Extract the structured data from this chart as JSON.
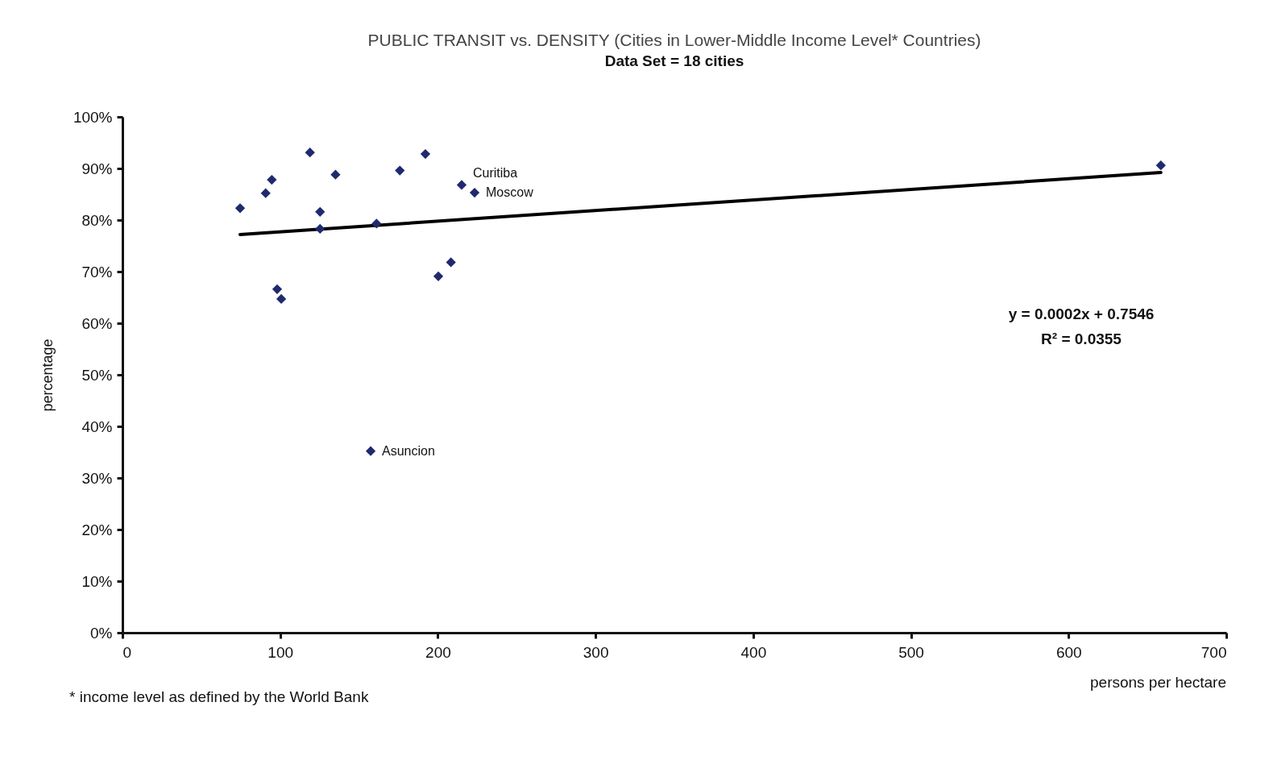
{
  "chart_data": {
    "type": "scatter",
    "title": "PUBLIC TRANSIT vs. DENSITY (Cities in Lower-Middle Income Level* Countries)",
    "subtitle": "Data Set = 18 cities",
    "xlabel": "persons per hectare",
    "ylabel": "percentage",
    "series": [
      {
        "color": "#1f2a6e",
        "marker": "diamond",
        "x": [
          74.6,
          90.8,
          94.7,
          118.9,
          135.1,
          125.3,
          125.3,
          161.1,
          175.9,
          192.1,
          215.1,
          223.3,
          208.3,
          200.3,
          98.1,
          100.7,
          157.4,
          658.5
        ],
        "values": [
          82.3,
          85.2,
          87.8,
          93.1,
          88.8,
          81.6,
          78.3,
          79.3,
          89.6,
          92.8,
          86.8,
          85.3,
          71.8,
          69.1,
          66.6,
          64.7,
          35.2,
          90.6
        ]
      },
      {
        "type": "line",
        "color": "#000000",
        "x": [
          74.6,
          658.5
        ],
        "values": [
          77.2,
          89.2
        ]
      }
    ],
    "xlim": [
      0,
      700
    ],
    "xticks": [
      0,
      100,
      200,
      300,
      400,
      500,
      600,
      700
    ],
    "ylim": [
      0,
      100
    ],
    "yticks": [
      {
        "value": 0,
        "label": "0%"
      },
      {
        "value": 10,
        "label": "10%"
      },
      {
        "value": 20,
        "label": "20%"
      },
      {
        "value": 30,
        "label": "30%"
      },
      {
        "value": 40,
        "label": "40%"
      },
      {
        "value": 50,
        "label": "50%"
      },
      {
        "value": 60,
        "label": "60%"
      },
      {
        "value": 70,
        "label": "70%"
      },
      {
        "value": 80,
        "label": "80%"
      },
      {
        "value": 90,
        "label": "90%"
      },
      {
        "value": 100,
        "label": "100%"
      }
    ],
    "grid": false,
    "annotations": [
      {
        "text": "Curitiba",
        "x": 215.1,
        "y": 86.8
      },
      {
        "text": "Moscow",
        "x": 223.3,
        "y": 85.3
      },
      {
        "text": "Asuncion",
        "x": 157.4,
        "y": 35.2
      },
      "y = 0.0002x + 0.7546",
      "R² = 0.0355",
      "* income level as defined by the World Bank"
    ]
  }
}
